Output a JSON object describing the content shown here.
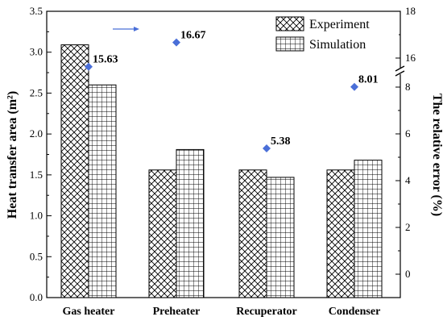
{
  "chart_data": {
    "type": "bar",
    "categories": [
      "Gas heater",
      "Preheater",
      "Recuperator",
      "Condenser"
    ],
    "series": [
      {
        "name": "Experiment",
        "values": [
          3.09,
          1.56,
          1.56,
          1.56
        ],
        "pattern": "crosshatch"
      },
      {
        "name": "Simulation",
        "values": [
          2.6,
          1.81,
          1.47,
          1.68
        ],
        "pattern": "grid"
      }
    ],
    "error_series": {
      "values": [
        15.63,
        16.67,
        5.38,
        8.01
      ],
      "labels": [
        "15.63",
        "16.67",
        "5.38",
        "8.01"
      ],
      "color": "#4a6fd8"
    },
    "ylabel_left": "Heat transfer area (m²)",
    "ylabel_right": "The relative error (%)",
    "ylim_left": [
      0,
      3.5
    ],
    "yticks_left": [
      "0.0",
      "0.5",
      "1.0",
      "1.5",
      "2.0",
      "2.5",
      "3.0",
      "3.5"
    ],
    "ylim_right": [
      -1,
      18
    ],
    "yticks_right_upper": [
      "16",
      "18"
    ],
    "yticks_right_lower": [
      "0",
      "2",
      "4",
      "6",
      "8"
    ],
    "right_axis_break": true,
    "legend_position": "top-right",
    "grid": false,
    "arrow_color": "#4a6fd8"
  }
}
